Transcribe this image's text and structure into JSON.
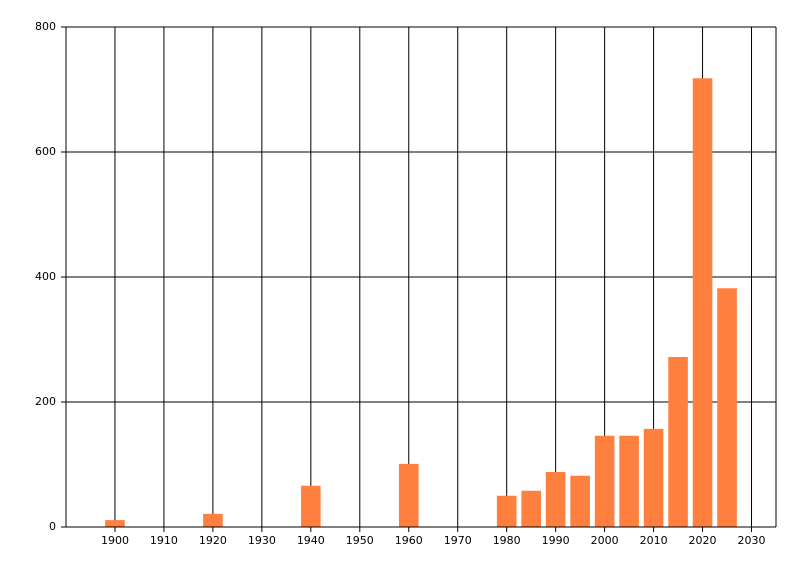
{
  "chart_data": {
    "type": "bar",
    "x": [
      1900,
      1920,
      1940,
      1960,
      1980,
      1985,
      1990,
      1995,
      2000,
      2005,
      2010,
      2015,
      2020,
      2025
    ],
    "values": [
      11,
      21,
      66,
      101,
      50,
      58,
      88,
      82,
      146,
      146,
      157,
      272,
      718,
      382
    ],
    "color": "#ff7f3f",
    "xlim": [
      1890,
      2035
    ],
    "xticks": [
      1900,
      1910,
      1920,
      1930,
      1940,
      1950,
      1960,
      1970,
      1980,
      1990,
      2000,
      2010,
      2020,
      2030
    ],
    "ylim": [
      0,
      800
    ],
    "yticks": [
      0,
      200,
      400,
      600,
      800
    ],
    "grid": true
  }
}
